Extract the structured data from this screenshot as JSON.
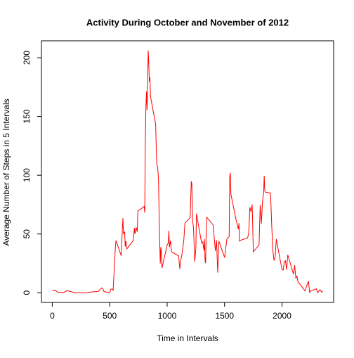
{
  "chart_data": {
    "type": "line",
    "title": "Activity During October and November of 2012",
    "xlabel": "Time in Intervals",
    "ylabel": "Average Number of Steps in 5 Intervals",
    "xlim": [
      -94.2,
      2449.2
    ],
    "ylim": [
      -8.25,
      214.42
    ],
    "xticks": [
      0,
      500,
      1000,
      1500,
      2000
    ],
    "yticks": [
      0,
      50,
      100,
      150,
      200
    ],
    "series": [
      {
        "name": "steps",
        "color": "#ff0000",
        "x": [
          0,
          25,
          50,
          100,
          130,
          200,
          230,
          300,
          330,
          400,
          430,
          440,
          450,
          500,
          510,
          520,
          530,
          550,
          555,
          600,
          610,
          615,
          620,
          630,
          635,
          640,
          650,
          700,
          705,
          715,
          720,
          730,
          740,
          745,
          800,
          805,
          810,
          815,
          820,
          825,
          830,
          835,
          840,
          845,
          850,
          855,
          900,
          905,
          910,
          915,
          920,
          925,
          930,
          935,
          940,
          945,
          950,
          955,
          1000,
          1010,
          1015,
          1020,
          1030,
          1035,
          1040,
          1100,
          1110,
          1120,
          1130,
          1145,
          1155,
          1200,
          1210,
          1215,
          1220,
          1230,
          1240,
          1250,
          1255,
          1300,
          1310,
          1320,
          1325,
          1330,
          1335,
          1340,
          1345,
          1400,
          1420,
          1430,
          1440,
          1450,
          1500,
          1520,
          1540,
          1545,
          1550,
          1555,
          1600,
          1620,
          1625,
          1630,
          1640,
          1700,
          1710,
          1715,
          1720,
          1730,
          1740,
          1745,
          1750,
          1800,
          1810,
          1820,
          1825,
          1830,
          1840,
          1845,
          1850,
          1855,
          1900,
          1910,
          1920,
          1930,
          1940,
          1950,
          2000,
          2010,
          2020,
          2030,
          2040,
          2050,
          2100,
          2110,
          2120,
          2130,
          2140,
          2150,
          2200,
          2210,
          2230,
          2240,
          2250,
          2300,
          2310,
          2330,
          2345,
          2355
        ],
        "values": [
          1.7,
          2.1,
          0.3,
          0.3,
          1.8,
          0,
          0,
          0,
          0.5,
          1.2,
          4.1,
          3.5,
          1,
          0,
          3,
          3.3,
          2.1,
          39.5,
          44.5,
          31.5,
          53.8,
          63.5,
          50,
          52,
          39.3,
          44,
          37.4,
          43.8,
          44.7,
          55,
          49.9,
          55.7,
          51.8,
          69.5,
          73.4,
          68.2,
          129.4,
          157.5,
          171.2,
          155.4,
          177.3,
          206.2,
          195.9,
          179.6,
          183.4,
          167,
          143.5,
          124,
          109.1,
          108.1,
          103.7,
          95.9,
          66.2,
          45.2,
          24.8,
          38.8,
          35,
          21.1,
          40.6,
          42.4,
          52.7,
          38.9,
          44.3,
          37.4,
          34.7,
          31.4,
          20.4,
          28.4,
          33.3,
          44.6,
          59.2,
          63.9,
          94.8,
          92.8,
          63.4,
          54.5,
          26.5,
          37.5,
          67.3,
          42.3,
          43.3,
          36.1,
          45.5,
          27.5,
          25.1,
          53.5,
          64.2,
          57.8,
          35.5,
          44.6,
          17.1,
          44,
          30,
          45.7,
          47.8,
          98.7,
          102.1,
          83.9,
          62.1,
          54,
          59.2,
          43.9,
          44.7,
          46.6,
          50.5,
          61.6,
          72.7,
          68.9,
          75.1,
          56.5,
          34.8,
          40.7,
          74.7,
          58.8,
          67.8,
          77.7,
          85.3,
          99.5,
          86.6,
          85.6,
          84.9,
          58,
          36.1,
          27.4,
          30.2,
          45.7,
          19.6,
          19.3,
          26.5,
          27.3,
          19.6,
          32.3,
          15.7,
          23.5,
          12.5,
          14.1,
          8.7,
          8.1,
          1.6,
          4.6,
          9.8,
          0.3,
          1.6,
          3.3,
          0,
          2.6,
          0.6,
          1.1
        ]
      }
    ]
  }
}
